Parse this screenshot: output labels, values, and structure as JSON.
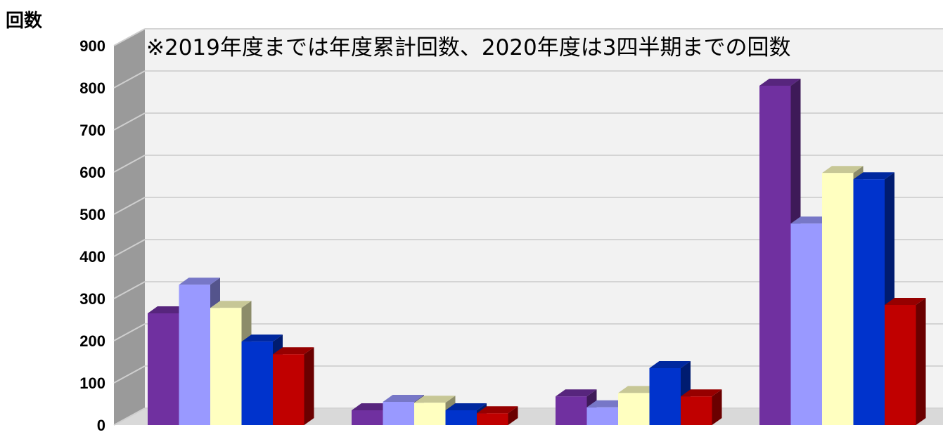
{
  "chart_data": {
    "type": "bar",
    "ylabel": "回数",
    "annotation": "※2019年度までは年度累計回数、2020年度は3四半期までの回数",
    "ylim": [
      0,
      900
    ],
    "yticks": [
      0,
      100,
      200,
      300,
      400,
      500,
      600,
      700,
      800,
      900
    ],
    "grid": true,
    "categories": [
      "",
      "",
      "",
      ""
    ],
    "series": [
      {
        "color": "#7030a0",
        "values": [
          265,
          35,
          68,
          805
        ]
      },
      {
        "color": "#9999ff",
        "values": [
          333,
          55,
          42,
          478
        ]
      },
      {
        "color": "#ffffc0",
        "values": [
          278,
          53,
          76,
          598
        ]
      },
      {
        "color": "#0033cc",
        "values": [
          198,
          35,
          135,
          583
        ]
      },
      {
        "color": "#c00000",
        "values": [
          168,
          28,
          68,
          285
        ]
      }
    ]
  }
}
